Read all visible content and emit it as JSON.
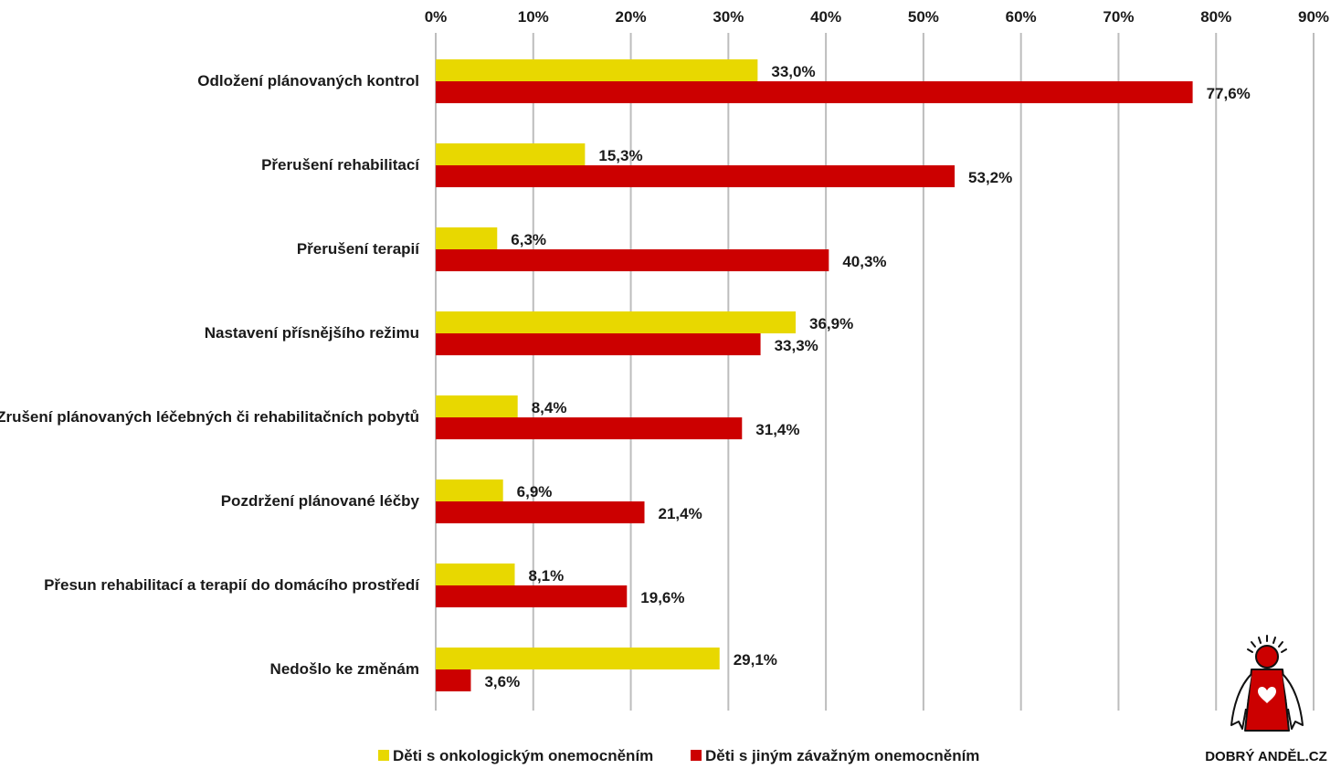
{
  "chart_data": {
    "type": "bar",
    "orientation": "horizontal",
    "categories": [
      "Odložení plánovaných kontrol",
      "Přerušení rehabilitací",
      "Přerušení terapií",
      "Nastavení přísnějšího režimu",
      "Zrušení plánovaných léčebných či rehabilitačních pobytů",
      "Pozdržení plánované léčby",
      "Přesun rehabilitací a terapií do domácího prostředí",
      "Nedošlo ke změnám"
    ],
    "series": [
      {
        "name": "Děti s onkologickým onemocněním",
        "color": "#e8d800",
        "values": [
          33.0,
          15.3,
          6.3,
          36.9,
          8.4,
          6.9,
          8.1,
          29.1
        ],
        "labels": [
          "33,0%",
          "15,3%",
          "6,3%",
          "36,9%",
          "8,4%",
          "6,9%",
          "8,1%",
          "29,1%"
        ]
      },
      {
        "name": "Děti s jiným závažným onemocněním",
        "color": "#cc0000",
        "values": [
          77.6,
          53.2,
          40.3,
          33.3,
          31.4,
          21.4,
          19.6,
          3.6
        ],
        "labels": [
          "77,6%",
          "53,2%",
          "40,3%",
          "33,3%",
          "31,4%",
          "21,4%",
          "19,6%",
          "3,6%"
        ]
      }
    ],
    "xlim": [
      0,
      90
    ],
    "xticks": [
      0,
      10,
      20,
      30,
      40,
      50,
      60,
      70,
      80,
      90
    ],
    "xtick_labels": [
      "0%",
      "10%",
      "20%",
      "30%",
      "40%",
      "50%",
      "60%",
      "70%",
      "80%",
      "90%"
    ],
    "x_axis_position": "top",
    "grid": true,
    "grid_color": "#bdbdbd",
    "legend_position": "bottom"
  },
  "logo": {
    "text": "DOBRÝ ANDĚL.CZ",
    "icon": "angel-heart-icon",
    "color": "#cc0000"
  }
}
